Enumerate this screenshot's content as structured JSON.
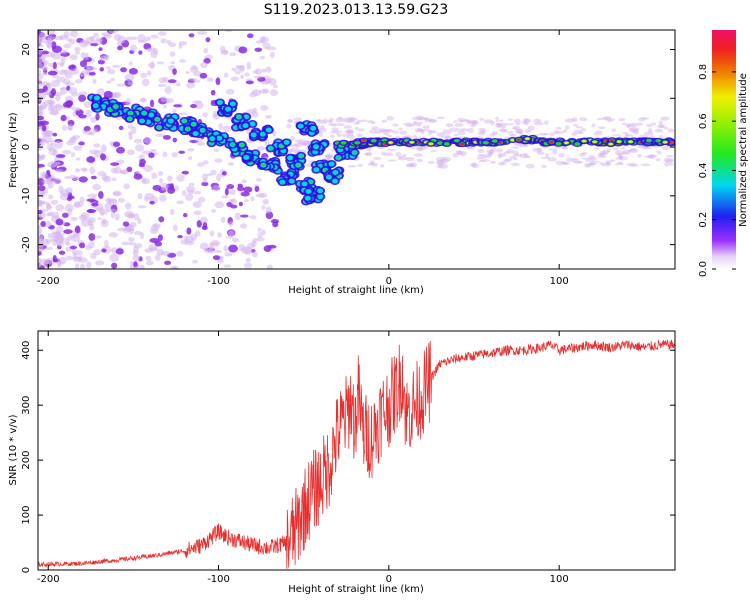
{
  "title": "S119.2023.013.13.59.G23",
  "chart_data": [
    {
      "type": "heatmap",
      "xlabel": "Height of straight line (km)",
      "ylabel": "Frequency (Hz)",
      "xlim": [
        -206,
        168
      ],
      "ylim": [
        -25,
        24
      ],
      "x_ticks": [
        -200,
        -100,
        0,
        100
      ],
      "y_ticks": [
        -20,
        -10,
        0,
        10,
        20
      ],
      "colorbar": {
        "label": "Normalized spectral amplitude",
        "range": [
          0,
          0.97
        ],
        "ticks": [
          0.0,
          0.2,
          0.4,
          0.6,
          0.8
        ]
      },
      "ridge": {
        "description_free_points": [
          [
            -170,
            9
          ],
          [
            -160,
            8
          ],
          [
            -150,
            7
          ],
          [
            -140,
            6
          ],
          [
            -130,
            5
          ],
          [
            -120,
            4.5
          ],
          [
            -110,
            3.5
          ],
          [
            -100,
            2
          ],
          [
            -90,
            0
          ],
          [
            -80,
            -2
          ],
          [
            -70,
            -4
          ],
          [
            -60,
            -6
          ],
          [
            -50,
            -8
          ],
          [
            -45,
            -10
          ],
          [
            -95,
            8
          ],
          [
            -85,
            5
          ],
          [
            -75,
            3
          ],
          [
            -65,
            0
          ],
          [
            -55,
            -3
          ],
          [
            -48,
            4
          ],
          [
            -42,
            0
          ],
          [
            -38,
            -4
          ],
          [
            -34,
            -6
          ],
          [
            -25,
            -1
          ],
          [
            -20,
            0.5
          ],
          [
            -10,
            1
          ],
          [
            0,
            1
          ],
          [
            20,
            1
          ],
          [
            40,
            1
          ],
          [
            60,
            1
          ],
          [
            80,
            1.5
          ],
          [
            100,
            1
          ],
          [
            120,
            1
          ],
          [
            140,
            1
          ],
          [
            160,
            1
          ]
        ]
      }
    },
    {
      "type": "line",
      "xlabel": "Height of straight line (km)",
      "ylabel": "SNR (10 * v/v)",
      "xlim": [
        -206,
        168
      ],
      "ylim": [
        0,
        435
      ],
      "x_ticks": [
        -200,
        -100,
        0,
        100
      ],
      "y_ticks": [
        0,
        100,
        200,
        300,
        400
      ],
      "color": "#e83030",
      "series": [
        {
          "x": [
            -206,
            -180,
            -160,
            -140,
            -120,
            -110,
            -100,
            -95,
            -90,
            -80,
            -70,
            -60,
            -55,
            -50,
            -45,
            -40,
            -35,
            -30,
            -25,
            -22,
            -20,
            -18,
            -15,
            -10,
            -5,
            0,
            5,
            8,
            10,
            15,
            20,
            25,
            30,
            40,
            50,
            60,
            70,
            80,
            90,
            95,
            100,
            110,
            120,
            130,
            140,
            150,
            160,
            168
          ],
          "values": [
            10,
            12,
            18,
            25,
            35,
            45,
            70,
            60,
            55,
            45,
            40,
            50,
            70,
            110,
            140,
            160,
            190,
            250,
            280,
            310,
            260,
            320,
            250,
            240,
            280,
            300,
            330,
            360,
            280,
            300,
            320,
            350,
            375,
            385,
            390,
            395,
            400,
            400,
            405,
            410,
            400,
            405,
            410,
            405,
            410,
            405,
            410,
            410
          ]
        }
      ]
    }
  ],
  "colors": {
    "line": "#e83030",
    "heat_low": "#d6b4f0",
    "heat_mid_blue": "#2020e0",
    "heat_cyan": "#00e0e0",
    "heat_green": "#20e020",
    "heat_yellow": "#f0f000",
    "heat_red": "#e02020"
  }
}
